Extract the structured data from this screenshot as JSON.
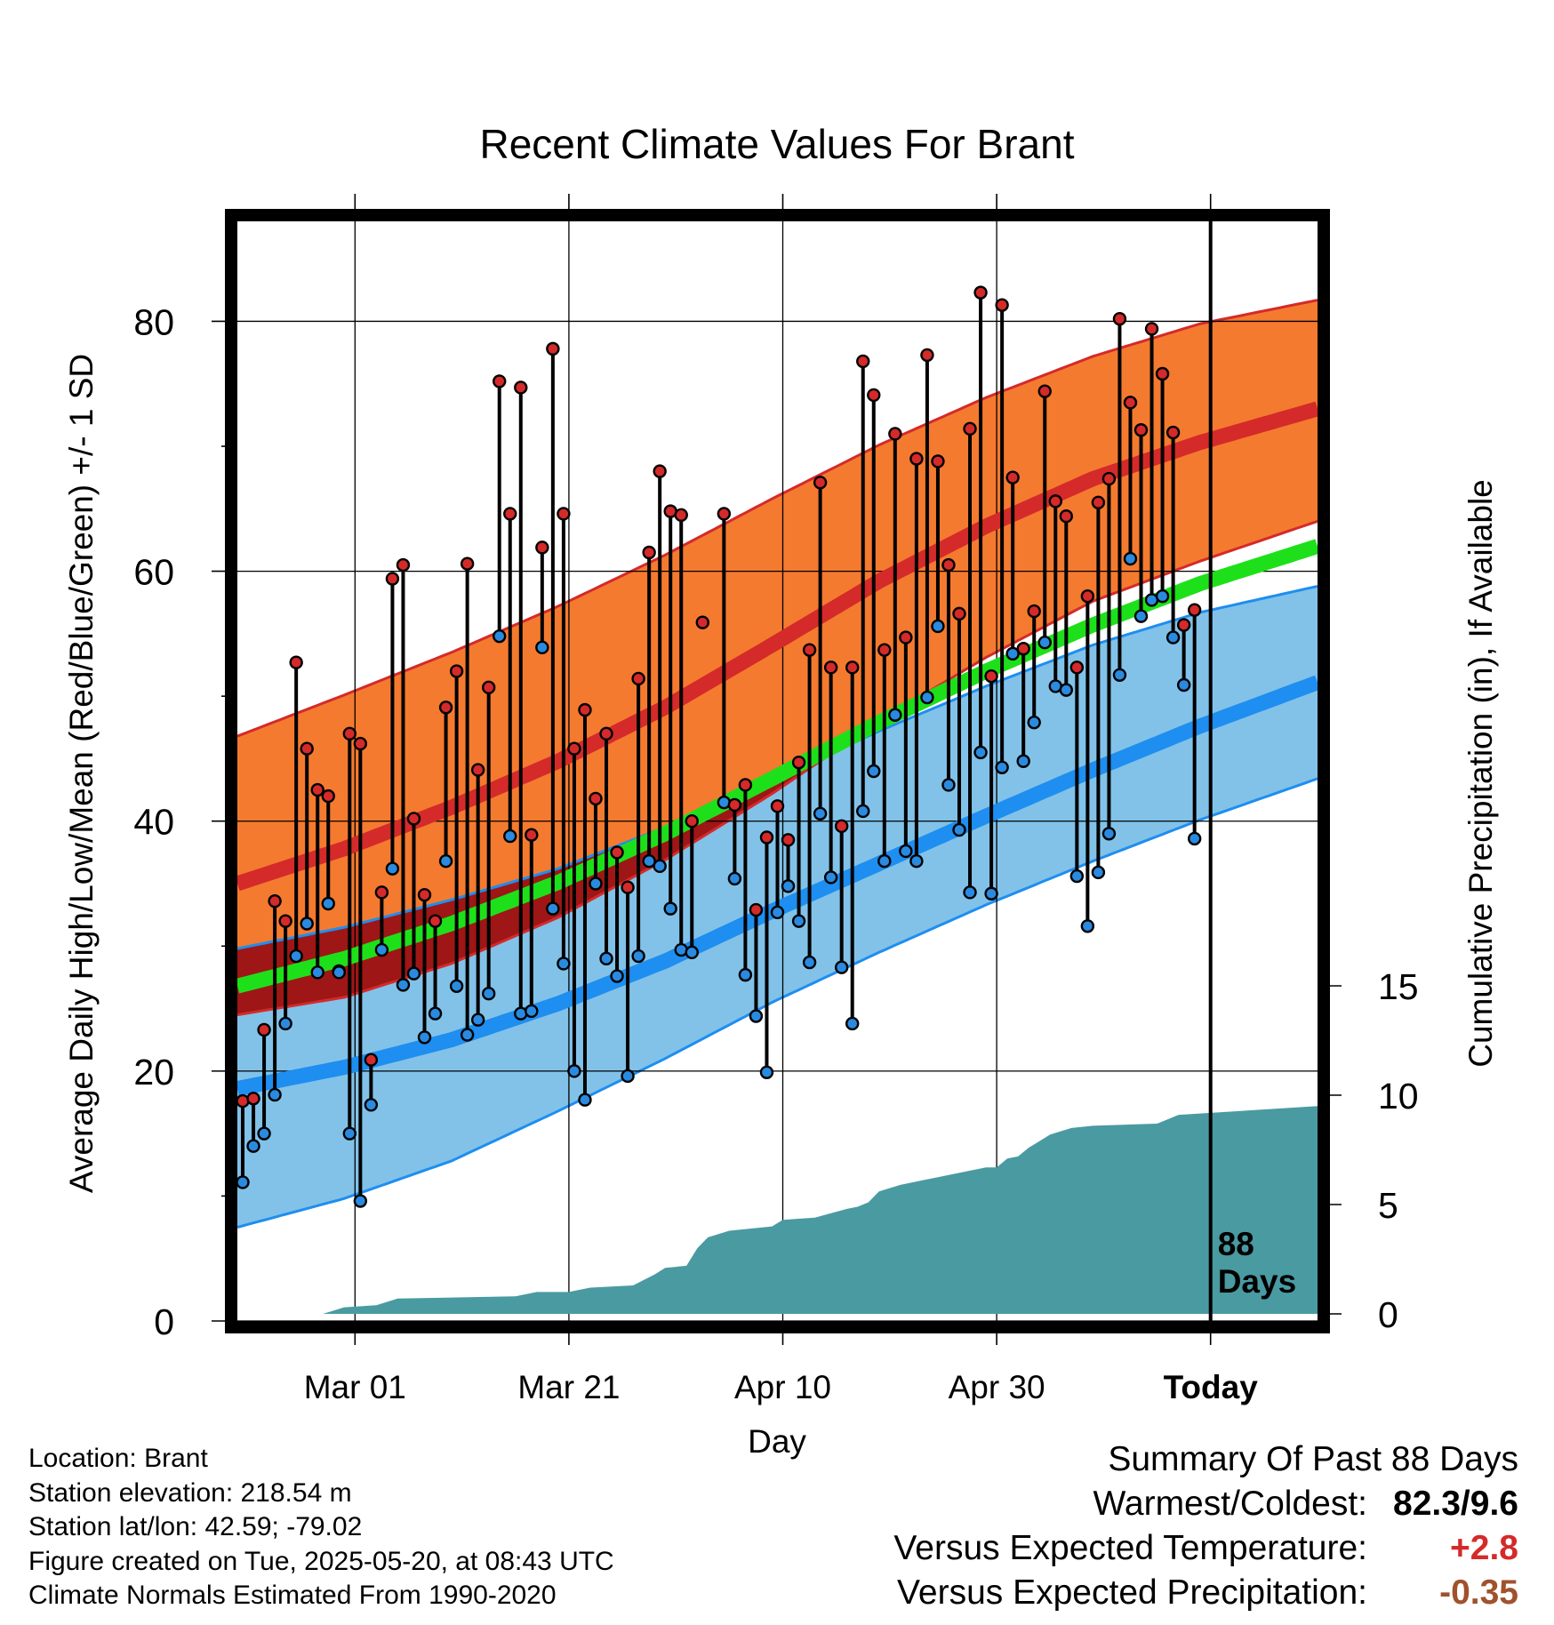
{
  "chart_data": {
    "type": "line",
    "title": "Recent Climate Values For Brant",
    "xlabel": "Day",
    "ylabel": "Average Daily High/Low/Mean (Red/Blue/Green) +/- 1 SD",
    "y2label": "Cumulative Precipitation (in), If Available",
    "x_range_days": [
      0,
      101
    ],
    "x_ticks": [
      {
        "label": "Mar 01",
        "day": 11
      },
      {
        "label": "Mar 21",
        "day": 31
      },
      {
        "label": "Apr 10",
        "day": 51
      },
      {
        "label": "Apr 30",
        "day": 71
      },
      {
        "label": "Today",
        "day": 91
      }
    ],
    "ylim": [
      0,
      88
    ],
    "y_ticks": [
      0,
      20,
      40,
      60,
      80
    ],
    "y2lim": [
      0,
      40
    ],
    "y2_ticks": [
      0,
      5,
      10,
      15
    ],
    "grid": true,
    "today_marker": {
      "day": 91,
      "label": [
        "88",
        "Days"
      ]
    },
    "colors": {
      "high_band": "#f47a2f",
      "high_line": "#d42a2a",
      "low_band": "#82c2e8",
      "low_line": "#1e8ef0",
      "mean_line": "#1ee01a",
      "overlap_band": "#9e1616",
      "precip": "#4a9aa2",
      "high_dot": "#d42a2a",
      "low_dot": "#2a8ae0"
    },
    "normals": {
      "days": [
        0,
        10,
        20,
        30,
        40,
        50,
        60,
        70,
        80,
        90,
        101
      ],
      "high_mean": [
        35,
        37.8,
        41.1,
        44.8,
        49.1,
        54.1,
        59.2,
        63.6,
        67.4,
        70.3,
        73
      ],
      "high_upper": [
        46.8,
        50.1,
        53.5,
        57.2,
        61.3,
        65.8,
        70.1,
        73.9,
        77.2,
        79.8,
        81.7
      ],
      "high_lower": [
        24.5,
        25.9,
        28.6,
        32.3,
        36.9,
        42.2,
        48,
        53.1,
        57.6,
        60.8,
        64
      ],
      "low_mean": [
        18.6,
        20.3,
        22.5,
        25.4,
        28.8,
        32.8,
        36.6,
        40.4,
        44.1,
        47.6,
        51.1
      ],
      "low_upper": [
        29.8,
        31.5,
        33.7,
        36.2,
        39.5,
        43.3,
        47.2,
        50.8,
        54.1,
        56.7,
        58.8
      ],
      "low_lower": [
        7.5,
        9.8,
        12.8,
        16.8,
        21,
        25.5,
        29.5,
        33.3,
        36.8,
        40.1,
        43.4
      ],
      "avg_mean": [
        26.8,
        29,
        31.8,
        35.1,
        39,
        43.4,
        47.9,
        52,
        55.7,
        59,
        62
      ]
    },
    "daily": {
      "start_day": 0,
      "highs": [
        17.6,
        17.8,
        23.3,
        33.6,
        32,
        52.7,
        45.8,
        42.5,
        42,
        28,
        47,
        46.2,
        20.9,
        34.3,
        59.4,
        60.5,
        40.2,
        34.1,
        32,
        49.1,
        52,
        60.6,
        44.1,
        50.7,
        75.2,
        64.6,
        74.7,
        38.9,
        61.9,
        77.8,
        64.6,
        45.8,
        48.9,
        41.8,
        47,
        37.5,
        34.7,
        51.4,
        61.5,
        68,
        64.8,
        64.5,
        40,
        55.9,
        null,
        64.6,
        41.3,
        42.9,
        32.9,
        38.7,
        41.2,
        38.5,
        44.7,
        53.7,
        67.1,
        52.3,
        39.6,
        52.3,
        76.8,
        74.1,
        53.7,
        71,
        54.7,
        69,
        77.3,
        68.8,
        60.5,
        56.6,
        71.4,
        82.3,
        51.6,
        81.3,
        67.5,
        53.8,
        56.8,
        74.4,
        65.6,
        64.4,
        52.3,
        58,
        65.5,
        67.4,
        80.2,
        73.5,
        71.3,
        79.4,
        75.8,
        71.1,
        55.7,
        56.9
      ],
      "lows": [
        11.1,
        14,
        15,
        18.1,
        23.8,
        29.2,
        31.8,
        27.9,
        33.4,
        27.9,
        15,
        9.6,
        17.3,
        29.7,
        36.2,
        26.9,
        27.8,
        22.7,
        24.6,
        36.8,
        26.8,
        22.9,
        24.1,
        26.2,
        54.8,
        38.8,
        24.6,
        24.8,
        53.9,
        33,
        28.6,
        20,
        17.7,
        35,
        29,
        27.6,
        19.6,
        29.2,
        36.8,
        36.4,
        33,
        29.7,
        29.5,
        null,
        null,
        41.5,
        35.4,
        27.7,
        24.4,
        19.9,
        32.7,
        34.8,
        32,
        28.7,
        40.6,
        35.5,
        28.3,
        23.8,
        40.8,
        44,
        36.8,
        48.5,
        37.6,
        36.8,
        49.9,
        55.6,
        42.9,
        39.3,
        34.3,
        45.5,
        34.2,
        44.3,
        53.4,
        44.8,
        47.9,
        54.3,
        50.8,
        50.5,
        35.6,
        31.6,
        35.9,
        39,
        51.7,
        61,
        56.4,
        57.7,
        58,
        54.7,
        50.9,
        38.6
      ]
    },
    "precip_cumulative": {
      "days": [
        0,
        8,
        10,
        13,
        15,
        26,
        28,
        29,
        31,
        32,
        33,
        37,
        39,
        40,
        42,
        43,
        44,
        46,
        50,
        51,
        54,
        57,
        58,
        59,
        60,
        62,
        64,
        65,
        68,
        70,
        71,
        72,
        73,
        74,
        75,
        76,
        78,
        80,
        86,
        87,
        88,
        101
      ],
      "values": [
        0,
        0,
        0.3,
        0.4,
        0.7,
        0.8,
        1,
        1,
        1,
        1.1,
        1.2,
        1.3,
        1.8,
        2.1,
        2.2,
        3,
        3.5,
        3.8,
        4,
        4.3,
        4.4,
        4.8,
        4.9,
        5.1,
        5.6,
        5.9,
        6.1,
        6.2,
        6.5,
        6.7,
        6.7,
        7.1,
        7.2,
        7.6,
        7.9,
        8.2,
        8.5,
        8.6,
        8.7,
        8.9,
        9.1,
        9.5
      ]
    }
  },
  "info": {
    "location": "Location: Brant",
    "elevation": "Station elevation: 218.54 m",
    "latlon": "Station lat/lon: 42.59; -79.02",
    "created": "Figure created on Tue, 2025-05-20, at 08:43 UTC",
    "normals": "Climate Normals Estimated From 1990-2020"
  },
  "summary": {
    "title": "Summary Of Past 88 Days",
    "warm_cold_label": "Warmest/Coldest:",
    "warm_cold_value": "82.3/9.6",
    "temp_label": "Versus Expected Temperature:",
    "temp_value": "+2.8",
    "temp_color": "#d42a2a",
    "precip_label": "Versus Expected Precipitation:",
    "precip_value": "-0.35",
    "precip_color": "#a0522d"
  }
}
